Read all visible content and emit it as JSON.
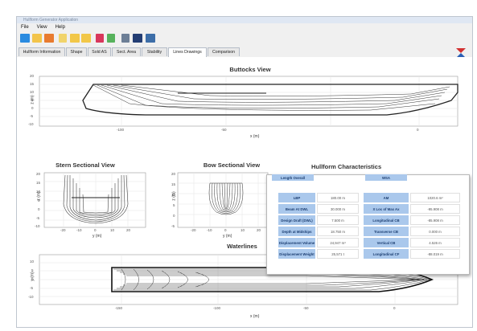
{
  "app": {
    "title": "Hullform Generator Application",
    "menu": [
      "File",
      "View",
      "Help"
    ]
  },
  "toolbar": {
    "icons": [
      "save-icon",
      "open-folder-icon",
      "chart-icon",
      "pencil-icon",
      "folder-icon",
      "folder-icon",
      "pen-icon",
      "pen-icon",
      "tool-icon",
      "disk-icon",
      "print-icon"
    ],
    "logo_icon": "logo-icon"
  },
  "tabs": [
    {
      "label": "Hullform Information",
      "active": false
    },
    {
      "label": "Shape",
      "active": false
    },
    {
      "label": "Sold AS",
      "active": false
    },
    {
      "label": "Sect. Area",
      "active": false
    },
    {
      "label": "Stability",
      "active": false
    },
    {
      "label": "Lines Drawings",
      "active": true
    },
    {
      "label": "Comparison",
      "active": false
    }
  ],
  "views": {
    "buttocks": {
      "title": "Buttocks View",
      "xlabel": "x (m)",
      "ylabel": "z (m)",
      "yticks": [
        "20",
        "15",
        "10",
        "5",
        "0",
        "-5",
        "-10"
      ],
      "xticks": [
        "-100",
        "-50",
        "0"
      ]
    },
    "stern": {
      "title": "Stern Sectional View",
      "xlabel": "y (m)",
      "ylabel": "z (m)",
      "yticks": [
        "20",
        "15",
        "10",
        "5",
        "0",
        "-5",
        "-10"
      ],
      "xticks": [
        "-20",
        "-10",
        "0",
        "10",
        "20"
      ]
    },
    "bow": {
      "title": "Bow Sectional View",
      "xlabel": "y (m)",
      "ylabel": "z (m)",
      "yticks": [
        "20",
        "15",
        "10",
        "5",
        "0",
        "-5"
      ],
      "xticks": [
        "-20",
        "-10",
        "0",
        "10",
        "20"
      ]
    },
    "waterlines": {
      "title": "Waterlines",
      "xlabel": "x (m)",
      "ylabel": "y (m)",
      "yticks": [
        "10",
        "5",
        "0",
        "-5",
        "-10"
      ],
      "xticks": [
        "-150",
        "-100",
        "-50",
        "0"
      ]
    }
  },
  "hullform": {
    "title": "Hullform Characteristics",
    "header_left": "Length Overall",
    "header_right": "WSA",
    "rows": [
      {
        "label": "LBP",
        "value": "180.00 m",
        "label2": "AM",
        "value2": "1020.6 m²"
      },
      {
        "label": "Beam At DWL",
        "value": "30.000 m",
        "label2": "X Loc of Max Ax",
        "value2": "-95.908 m"
      },
      {
        "label": "Design Draft (DWL)",
        "value": "7.500 m",
        "label2": "Longitudinal CB",
        "value2": "-85.908 m"
      },
      {
        "label": "Depth at Midships",
        "value": "18.750 m",
        "label2": "Transverse CB",
        "value2": "0.000 m"
      },
      {
        "label": "Displacement Volume",
        "value": "24,947 m³",
        "label2": "Vertical CB",
        "value2": "4.526 m"
      },
      {
        "label": "Displacement Weight",
        "value": "25,571 t",
        "label2": "Longitudinal CF",
        "value2": "-88.019 m"
      }
    ]
  }
}
